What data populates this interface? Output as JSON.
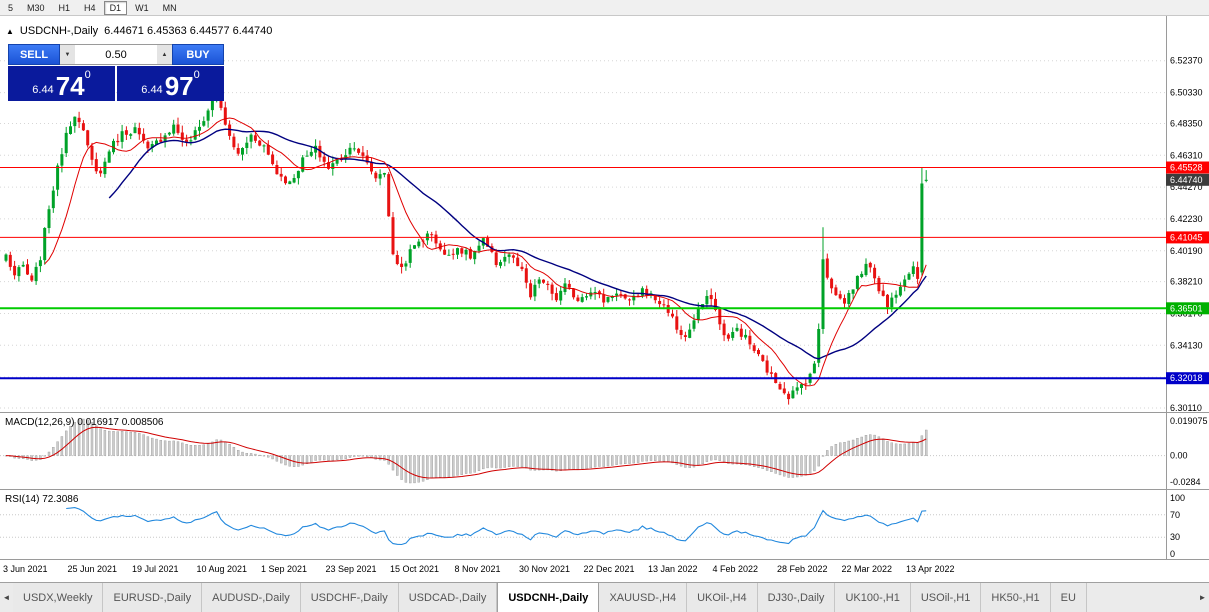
{
  "toolbar": {
    "timeframes": [
      {
        "label": "5"
      },
      {
        "label": "M30"
      },
      {
        "label": "H1"
      },
      {
        "label": "H4"
      },
      {
        "label": "D1"
      },
      {
        "label": "W1"
      },
      {
        "label": "MN"
      }
    ],
    "active_timeframe": "D1"
  },
  "chart_header": {
    "collapse_glyph": "▲",
    "symbol": "USDCNH-,Daily",
    "ohlc": "6.44671 6.45363 6.44577 6.44740"
  },
  "trade_panel": {
    "sell_label": "SELL",
    "buy_label": "BUY",
    "volume": "0.50",
    "spin_down": "▼",
    "spin_up": "▲",
    "sell_price": {
      "small": "6.44",
      "big": "74",
      "sup": "0"
    },
    "buy_price": {
      "small": "6.44",
      "big": "97",
      "sup": "0"
    }
  },
  "macd_panel": {
    "title": "MACD(12,26,9) 0.016917 0.008506"
  },
  "rsi_panel": {
    "title": "RSI(14) 72.3086"
  },
  "tabs": {
    "scroll_left": "◄",
    "scroll_right": "►",
    "active_label": "USDCNH-,Daily",
    "items": [
      "USDX,Weekly",
      "EURUSD-,Daily",
      "AUDUSD-,Daily",
      "USDCHF-,Daily",
      "USDCAD-,Daily",
      "USDCNH-,Daily",
      "XAUUSD-,H4",
      "UKOil-,H4",
      "DJ30-,Daily",
      "UK100-,H1",
      "USOil-,H1",
      "HK50-,H1",
      "EU"
    ]
  },
  "chart_data": {
    "type": "candlestick",
    "title": "USDCNH-,Daily",
    "timeframe": "Daily",
    "current_bar": {
      "open": 6.44671,
      "high": 6.45363,
      "low": 6.44577,
      "close": 6.4474
    },
    "bars_count": 215,
    "price_anchors": [
      [
        0,
        6.399
      ],
      [
        2,
        6.386
      ],
      [
        4,
        6.392
      ],
      [
        6,
        6.381
      ],
      [
        8,
        6.398
      ],
      [
        10,
        6.43
      ],
      [
        12,
        6.454
      ],
      [
        14,
        6.478
      ],
      [
        16,
        6.49
      ],
      [
        18,
        6.477
      ],
      [
        20,
        6.459
      ],
      [
        22,
        6.451
      ],
      [
        24,
        6.467
      ],
      [
        27,
        6.477
      ],
      [
        30,
        6.48
      ],
      [
        33,
        6.466
      ],
      [
        36,
        6.474
      ],
      [
        39,
        6.482
      ],
      [
        42,
        6.47
      ],
      [
        45,
        6.481
      ],
      [
        47,
        6.492
      ],
      [
        49,
        6.508
      ],
      [
        51,
        6.481
      ],
      [
        54,
        6.463
      ],
      [
        57,
        6.476
      ],
      [
        60,
        6.469
      ],
      [
        63,
        6.452
      ],
      [
        66,
        6.445
      ],
      [
        69,
        6.46
      ],
      [
        72,
        6.467
      ],
      [
        75,
        6.455
      ],
      [
        78,
        6.462
      ],
      [
        81,
        6.47
      ],
      [
        84,
        6.457
      ],
      [
        86,
        6.449
      ],
      [
        88,
        6.453
      ],
      [
        89,
        6.425
      ],
      [
        90,
        6.398
      ],
      [
        92,
        6.391
      ],
      [
        94,
        6.401
      ],
      [
        96,
        6.408
      ],
      [
        99,
        6.413
      ],
      [
        102,
        6.398
      ],
      [
        105,
        6.404
      ],
      [
        108,
        6.398
      ],
      [
        111,
        6.408
      ],
      [
        114,
        6.394
      ],
      [
        117,
        6.4
      ],
      [
        120,
        6.388
      ],
      [
        122,
        6.372
      ],
      [
        124,
        6.384
      ],
      [
        126,
        6.378
      ],
      [
        128,
        6.371
      ],
      [
        130,
        6.379
      ],
      [
        133,
        6.371
      ],
      [
        136,
        6.377
      ],
      [
        139,
        6.37
      ],
      [
        142,
        6.376
      ],
      [
        145,
        6.368
      ],
      [
        148,
        6.377
      ],
      [
        151,
        6.371
      ],
      [
        154,
        6.364
      ],
      [
        156,
        6.352
      ],
      [
        158,
        6.346
      ],
      [
        160,
        6.357
      ],
      [
        162,
        6.368
      ],
      [
        164,
        6.373
      ],
      [
        166,
        6.354
      ],
      [
        168,
        6.345
      ],
      [
        170,
        6.352
      ],
      [
        172,
        6.346
      ],
      [
        174,
        6.338
      ],
      [
        176,
        6.33
      ],
      [
        178,
        6.321
      ],
      [
        180,
        6.315
      ],
      [
        182,
        6.309
      ],
      [
        184,
        6.313
      ],
      [
        186,
        6.319
      ],
      [
        188,
        6.328
      ],
      [
        189,
        6.352
      ],
      [
        190,
        6.398
      ],
      [
        191,
        6.386
      ],
      [
        193,
        6.373
      ],
      [
        195,
        6.369
      ],
      [
        197,
        6.379
      ],
      [
        199,
        6.389
      ],
      [
        201,
        6.393
      ],
      [
        203,
        6.378
      ],
      [
        205,
        6.366
      ],
      [
        207,
        6.376
      ],
      [
        209,
        6.386
      ],
      [
        211,
        6.392
      ],
      [
        212,
        6.386
      ],
      [
        213,
        6.445
      ],
      [
        214,
        6.4474
      ]
    ],
    "overrides": {
      "49": {
        "high": 6.5135
      },
      "190": {
        "high": 6.417
      },
      "213": {
        "open": 6.388,
        "high": 6.4553,
        "low": 6.386,
        "close": 6.445
      },
      "214": {
        "open": 6.44671,
        "high": 6.45363,
        "low": 6.44577,
        "close": 6.4474
      }
    },
    "y_ticks": [
      6.5237,
      6.5033,
      6.4835,
      6.4631,
      6.4427,
      6.4223,
      6.4019,
      6.3821,
      6.3617,
      6.3413,
      6.3209,
      6.3011
    ],
    "y_tick_labels": [
      "6.52370",
      "6.50330",
      "6.48350",
      "6.46310",
      "6.44270",
      "6.42230",
      "6.40190",
      "6.38210",
      "6.36170",
      "6.34130",
      "6.32090",
      "6.30110"
    ],
    "h_lines": [
      {
        "price": 6.45528,
        "color": "#ff0000",
        "width": 1
      },
      {
        "price": 6.41045,
        "color": "#ff0000",
        "width": 1
      },
      {
        "price": 6.36501,
        "color": "#00cc00",
        "width": 2
      },
      {
        "price": 6.32018,
        "color": "#0000c8",
        "width": 2
      }
    ],
    "price_tags": [
      {
        "label": "6.45528",
        "price": 6.45528,
        "color": "#ff0000"
      },
      {
        "label": "6.44740",
        "price": 6.4474,
        "color": "#3c3c3c"
      },
      {
        "label": "6.41045",
        "price": 6.41045,
        "color": "#ff0000"
      },
      {
        "label": "6.36501",
        "price": 6.36501,
        "color": "#00b000"
      },
      {
        "label": "6.32018",
        "price": 6.32018,
        "color": "#0000c8"
      }
    ],
    "x_labels": [
      {
        "index": 0,
        "label": "3 Jun 2021"
      },
      {
        "index": 15,
        "label": "25 Jun 2021"
      },
      {
        "index": 30,
        "label": "19 Jul 2021"
      },
      {
        "index": 45,
        "label": "10 Aug 2021"
      },
      {
        "index": 60,
        "label": "1 Sep 2021"
      },
      {
        "index": 75,
        "label": "23 Sep 2021"
      },
      {
        "index": 90,
        "label": "15 Oct 2021"
      },
      {
        "index": 105,
        "label": "8 Nov 2021"
      },
      {
        "index": 120,
        "label": "30 Nov 2021"
      },
      {
        "index": 135,
        "label": "22 Dec 2021"
      },
      {
        "index": 150,
        "label": "13 Jan 2022"
      },
      {
        "index": 165,
        "label": "4 Feb 2022"
      },
      {
        "index": 180,
        "label": "28 Feb 2022"
      },
      {
        "index": 195,
        "label": "22 Mar 2022"
      },
      {
        "index": 210,
        "label": "13 Apr 2022"
      }
    ],
    "indicators": {
      "ma_fast": {
        "period": 10,
        "color": "#e00000"
      },
      "ma_slow": {
        "period": 25,
        "color": "#000080"
      },
      "macd": {
        "label": "MACD(12,26,9)",
        "value": "0.016917",
        "signal": "0.008506",
        "scale_top": "0.019075",
        "scale_zero": "0.00",
        "scale_bottom": "-0.0284"
      },
      "rsi": {
        "label": "RSI(14)",
        "value": "72.3086",
        "period": 14,
        "levels": [
          70,
          30
        ],
        "scale": [
          "100",
          "70",
          "30",
          "0"
        ],
        "color": "#2288dd"
      }
    },
    "colors": {
      "up": "#00a228",
      "down": "#e81212",
      "grid": "#d6d6d6",
      "macd_hist": "#cccccc",
      "macd_hist_border": "#999999",
      "macd_signal": "#d00000"
    }
  }
}
